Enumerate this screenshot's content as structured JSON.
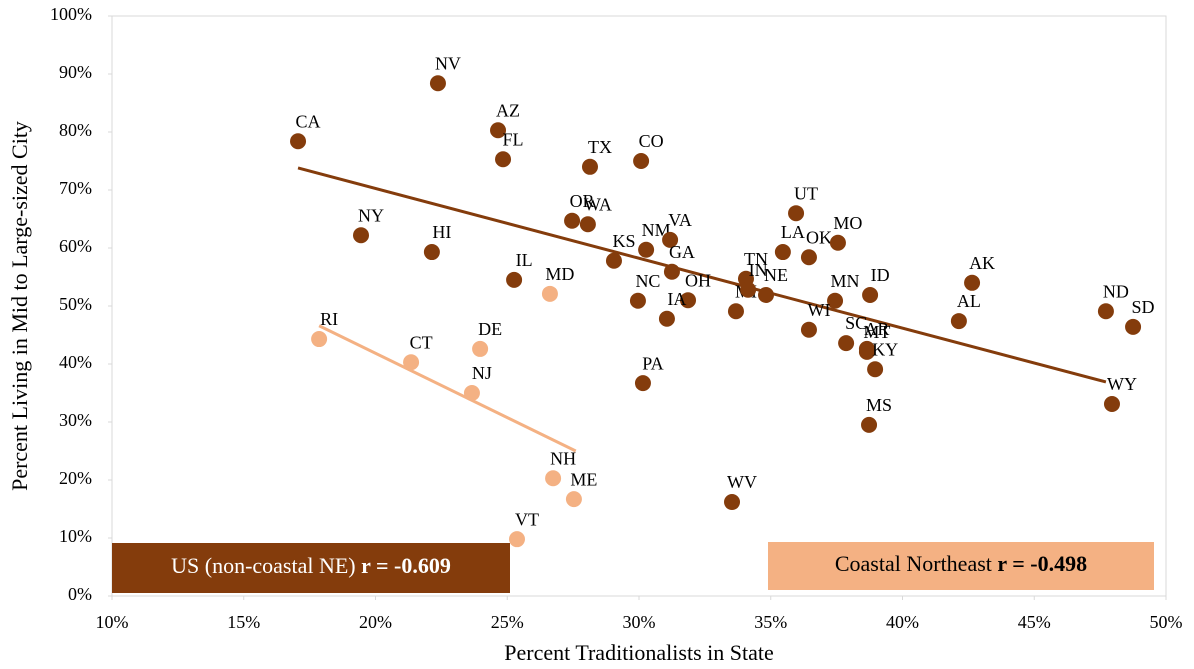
{
  "chart_data": {
    "type": "scatter",
    "xlabel": "Percent Traditionalists in State",
    "ylabel": "Percent Living in Mid to Large-sized City",
    "xlim": [
      10,
      50
    ],
    "xticks": [
      {
        "value": 10,
        "label": "10%"
      },
      {
        "value": 15,
        "label": "15%"
      },
      {
        "value": 20,
        "label": "20%"
      },
      {
        "value": 25,
        "label": "25%"
      },
      {
        "value": 30,
        "label": "30%"
      },
      {
        "value": 35,
        "label": "35%"
      },
      {
        "value": 40,
        "label": "40%"
      },
      {
        "value": 45,
        "label": "45%"
      },
      {
        "value": 50,
        "label": "50%"
      }
    ],
    "ylim": [
      0,
      100
    ],
    "yticks": [
      {
        "value": 0,
        "label": "0%"
      },
      {
        "value": 10,
        "label": "10%"
      },
      {
        "value": 20,
        "label": "20%"
      },
      {
        "value": 30,
        "label": "30%"
      },
      {
        "value": 40,
        "label": "40%"
      },
      {
        "value": 50,
        "label": "50%"
      },
      {
        "value": 60,
        "label": "60%"
      },
      {
        "value": 70,
        "label": "70%"
      },
      {
        "value": 80,
        "label": "80%"
      },
      {
        "value": 90,
        "label": "90%"
      },
      {
        "value": 100,
        "label": "100%"
      }
    ],
    "grid": false,
    "series": [
      {
        "name": "US (non-coastal NE)",
        "r_label": "r = -0.609",
        "color": "#843c0c",
        "labels": [
          "CA",
          "NV",
          "AZ",
          "FL",
          "TX",
          "CO",
          "NY",
          "HI",
          "IL",
          "OR",
          "WA",
          "KS",
          "NM",
          "VA",
          "GA",
          "NC",
          "OH",
          "IA",
          "PA",
          "TN",
          "NE",
          "MI",
          "IN",
          "UT",
          "LA",
          "OK",
          "MO",
          "MN",
          "WI",
          "SC",
          "MT",
          "AR",
          "KY",
          "ID",
          "MS",
          "WV",
          "AK",
          "AL",
          "ND",
          "SD",
          "WY"
        ],
        "x": [
          17.06,
          22.37,
          24.65,
          24.84,
          28.14,
          30.08,
          19.45,
          22.14,
          25.26,
          27.46,
          28.06,
          29.05,
          30.27,
          31.18,
          31.25,
          29.96,
          31.86,
          31.06,
          30.15,
          34.06,
          34.82,
          33.68,
          34.14,
          35.96,
          35.46,
          36.45,
          37.55,
          37.44,
          36.45,
          37.86,
          38.65,
          38.65,
          38.96,
          38.77,
          38.73,
          33.53,
          42.64,
          42.14,
          47.72,
          48.75,
          47.95
        ],
        "values": [
          78.4,
          88.4,
          80.3,
          75.3,
          74.0,
          75.0,
          62.2,
          59.3,
          54.5,
          64.7,
          64.1,
          57.8,
          59.7,
          61.4,
          55.9,
          50.9,
          51.0,
          47.8,
          36.7,
          54.7,
          51.9,
          49.1,
          52.8,
          66.0,
          59.3,
          58.4,
          60.9,
          50.9,
          45.9,
          43.6,
          42.1,
          42.6,
          39.1,
          51.9,
          29.5,
          16.2,
          54.0,
          47.4,
          49.1,
          46.4,
          33.1
        ],
        "trend_x": [
          17.06,
          47.72
        ],
        "trend_y": [
          73.8,
          36.9
        ]
      },
      {
        "name": "Coastal Northeast",
        "r_label": "r = -0.498",
        "color": "#f4b183",
        "labels": [
          "RI",
          "CT",
          "DE",
          "NJ",
          "MD",
          "NH",
          "ME",
          "VT"
        ],
        "x": [
          17.86,
          21.35,
          23.97,
          23.66,
          26.62,
          26.74,
          27.53,
          25.37
        ],
        "values": [
          44.3,
          40.3,
          42.6,
          35.0,
          52.1,
          20.3,
          16.7,
          9.8
        ],
        "trend_x": [
          17.86,
          27.6
        ],
        "trend_y": [
          46.6,
          25.0
        ]
      }
    ]
  }
}
